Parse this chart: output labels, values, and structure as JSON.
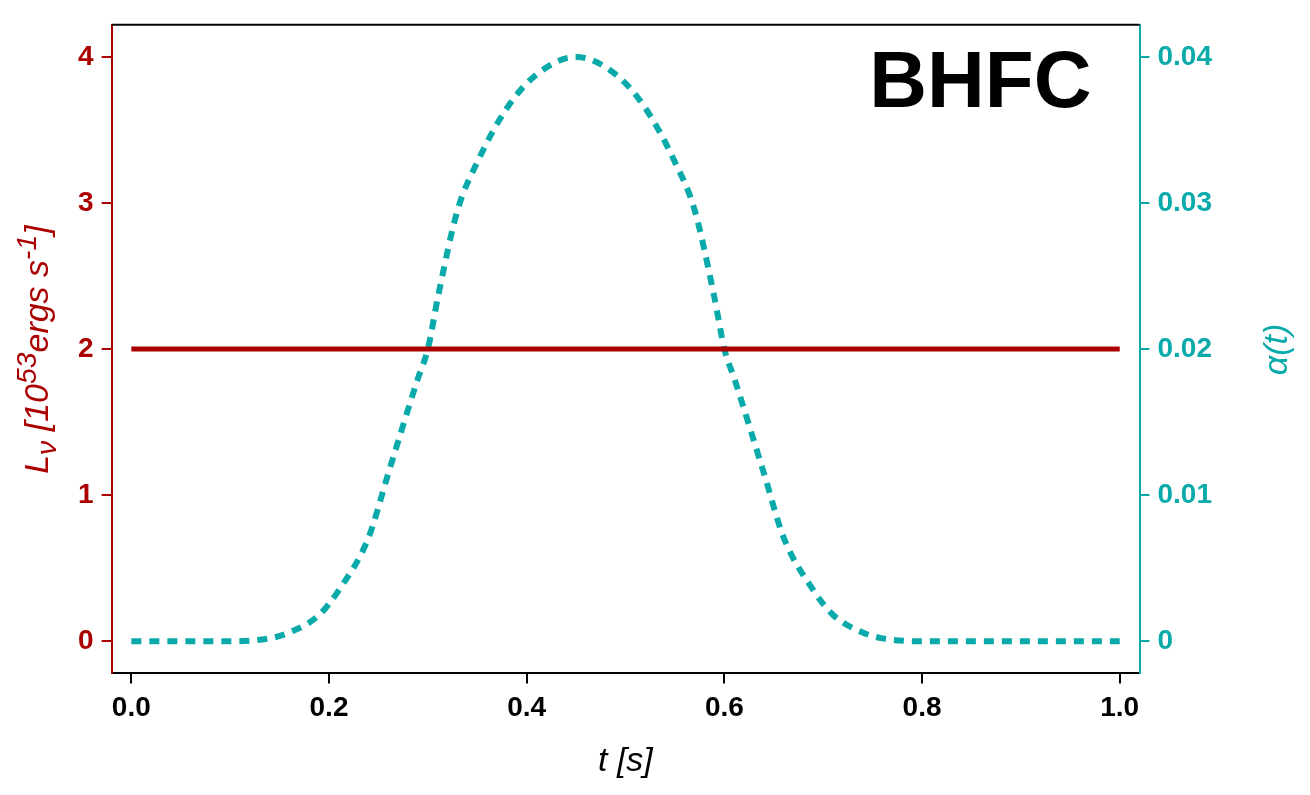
{
  "chart_data": {
    "type": "line",
    "title": "BHFC",
    "xlabel": "t [s]",
    "ylabel": "L$_{ν}$ [10$^{53}$ergs s$^{-1}$]",
    "y2label": "α(t)",
    "series": [
      {
        "color": "#aa0000",
        "x": [
          0,
          1
        ],
        "values": [
          2,
          2
        ],
        "line_style": "solid"
      },
      {
        "color": "#0aaaaa",
        "axis": "y2",
        "line_style": "dashed",
        "x": [
          0,
          0.1,
          0.14,
          0.16,
          0.19,
          0.21,
          0.24,
          0.26,
          0.29,
          0.3,
          0.31,
          0.33,
          0.35,
          0.38,
          0.41,
          0.45,
          0.49,
          0.52,
          0.55,
          0.57,
          0.59,
          0.6,
          0.61,
          0.64,
          0.66,
          0.69,
          0.71,
          0.74,
          0.76,
          0.8,
          1
        ],
        "values": [
          0,
          0,
          0.0002,
          0.0006,
          0.0018,
          0.0035,
          0.0071,
          0.0115,
          0.018,
          0.02,
          0.0235,
          0.0295,
          0.0328,
          0.0365,
          0.0388,
          0.04,
          0.0388,
          0.0365,
          0.0328,
          0.0295,
          0.0235,
          0.02,
          0.018,
          0.0115,
          0.0071,
          0.0035,
          0.0018,
          0.0006,
          0.0002,
          0,
          0
        ]
      }
    ],
    "xlim": [
      -0.02,
      1.02
    ],
    "xticks": [
      {
        "value": 0,
        "label": "0.0"
      },
      0.2,
      0.4,
      0.6,
      0.8,
      {
        "value": 1,
        "label": "1.0"
      }
    ],
    "ylim": [
      -0.22,
      4.22
    ],
    "yticks": [
      0,
      1,
      2,
      3,
      4
    ],
    "y2lim": [
      -0.0022,
      0.0422
    ],
    "y2ticks": [
      0,
      0.01,
      0.02,
      0.03,
      0.04
    ],
    "grid": false,
    "legend": false,
    "marker": "none"
  }
}
